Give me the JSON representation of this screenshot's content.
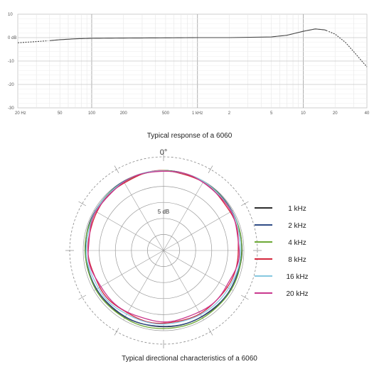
{
  "chart_data": [
    {
      "type": "line",
      "title": "Typical response of a 6060",
      "x_scale": "log",
      "xlim": [
        20,
        40000
      ],
      "ylim": [
        -30,
        10
      ],
      "x_ticks": [
        {
          "v": 20,
          "label": "20 Hz"
        },
        {
          "v": 50,
          "label": "50"
        },
        {
          "v": 100,
          "label": "100"
        },
        {
          "v": 200,
          "label": "200"
        },
        {
          "v": 500,
          "label": "500"
        },
        {
          "v": 1000,
          "label": "1 kHz"
        },
        {
          "v": 2000,
          "label": "2"
        },
        {
          "v": 5000,
          "label": "5"
        },
        {
          "v": 10000,
          "label": "10"
        },
        {
          "v": 20000,
          "label": "20"
        },
        {
          "v": 40000,
          "label": "40"
        }
      ],
      "y_ticks": [
        {
          "v": 10,
          "label": "10"
        },
        {
          "v": 0,
          "label": "0 dB"
        },
        {
          "v": -10,
          "label": "-10"
        },
        {
          "v": -20,
          "label": "-20"
        },
        {
          "v": -30,
          "label": "-30"
        }
      ],
      "major_x_gridlines": [
        100,
        1000,
        10000
      ],
      "grid": true,
      "color": "#444444",
      "series": [
        {
          "points": [
            [
              20,
              -2.2
            ],
            [
              30,
              -1.7
            ],
            [
              40,
              -1.3
            ],
            [
              50,
              -0.9
            ],
            [
              70,
              -0.5
            ],
            [
              100,
              -0.3
            ],
            [
              200,
              -0.2
            ],
            [
              500,
              -0.1
            ],
            [
              1000,
              0.0
            ],
            [
              2000,
              0.0
            ],
            [
              5000,
              0.3
            ],
            [
              7000,
              1.0
            ],
            [
              10000,
              2.7
            ],
            [
              13000,
              3.7
            ],
            [
              16000,
              3.3
            ],
            [
              20000,
              1.5
            ],
            [
              25000,
              -2.0
            ],
            [
              30000,
              -6.0
            ],
            [
              35000,
              -9.5
            ],
            [
              40000,
              -12.5
            ]
          ],
          "dashed_below": 40,
          "dashed_above": 17000
        }
      ]
    },
    {
      "type": "polar",
      "title": "Typical directional characteristics of a 6060",
      "angle_top_label": "0°",
      "radial_label": "5 dB",
      "radial_step_db": 5,
      "rings": 5,
      "spokes_deg": 30,
      "legend_position": "right",
      "series": [
        {
          "name": "1 kHz",
          "color": "#2d2d2d",
          "radius_db": [
            0,
            -0.1,
            -0.3,
            -0.5,
            -0.8,
            -1.0,
            -1.1,
            -1.0,
            -0.8,
            -0.5,
            -0.3,
            -0.1
          ],
          "wobble": 0.05
        },
        {
          "name": "2 kHz",
          "color": "#2f4c86",
          "radius_db": [
            0,
            -0.1,
            -0.3,
            -0.6,
            -0.9,
            -1.1,
            -1.2,
            -1.1,
            -0.9,
            -0.6,
            -0.3,
            -0.1
          ],
          "wobble": 0.06
        },
        {
          "name": "4 kHz",
          "color": "#6ca935",
          "radius_db": [
            0,
            -0.2,
            -0.4,
            -0.5,
            -0.6,
            -0.6,
            -0.5,
            -0.6,
            -0.6,
            -0.5,
            -0.4,
            -0.2
          ],
          "wobble": 0.07
        },
        {
          "name": "8 kHz",
          "color": "#d4263c",
          "radius_db": [
            0,
            -0.4,
            -0.9,
            -1.5,
            -2.0,
            -2.3,
            -2.2,
            -2.3,
            -2.0,
            -1.5,
            -0.9,
            -0.4
          ],
          "wobble": 0.15
        },
        {
          "name": "16 kHz",
          "color": "#86c8e0",
          "radius_db": [
            0,
            -0.1,
            -0.5,
            -0.9,
            -1.4,
            -1.9,
            -2.0,
            -1.9,
            -1.4,
            -0.9,
            -0.5,
            -0.1
          ],
          "wobble": 0.1
        },
        {
          "name": "20 kHz",
          "color": "#c9388e",
          "radius_db": [
            0,
            -0.3,
            -0.8,
            -1.4,
            -2.2,
            -2.7,
            -2.8,
            -2.7,
            -2.2,
            -1.4,
            -0.8,
            -0.3
          ],
          "wobble": 0.2
        }
      ]
    }
  ]
}
